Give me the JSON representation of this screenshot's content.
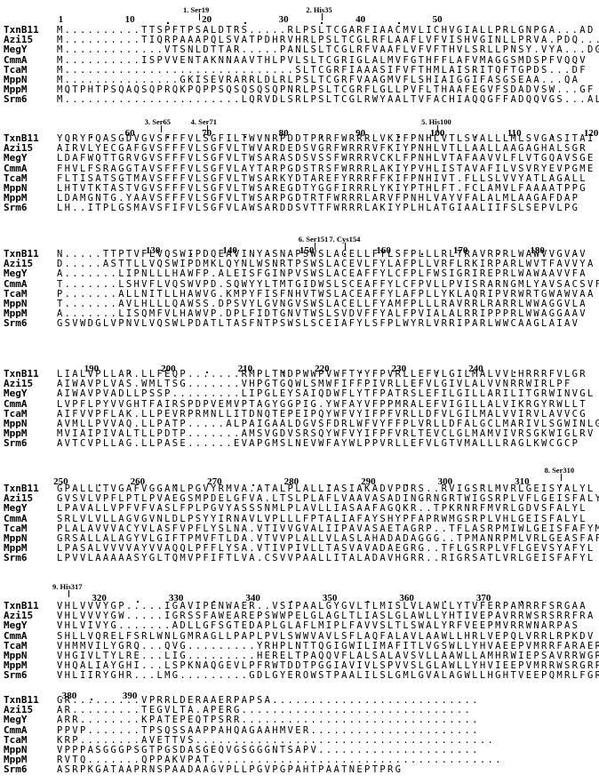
{
  "blocks": [
    {
      "ruler": [
        {
          "label": "1",
          "col": 1
        },
        {
          "label": "10",
          "col": 10
        },
        {
          "label": "20",
          "col": 20
        },
        {
          "label": "30",
          "col": 30
        },
        {
          "label": "40",
          "col": 40
        },
        {
          "label": "50",
          "col": 50
        }
      ],
      "dots": [
        15,
        25,
        35,
        45
      ],
      "annotations": [
        {
          "label": "1. Ser19",
          "col": 19
        },
        {
          "label": "2. His35",
          "col": 35
        }
      ],
      "rows": [
        {
          "name": "TxnB11",
          "seq": "M..........TTSPFTPSALDTRS.....RLPSLTCGARFIAACMVLICHVGIALLPRLGNPGA...AD"
        },
        {
          "name": "Azi15",
          "seq": "M..........TIQRPAAAPQLSVATPDHRVHRLPSLTCGLRFLAAFLVFVISHVGINLLPRVA.PDQ...IF"
        },
        {
          "name": "MegY",
          "seq": "M.............VTSNLDTTAR.....PANLSLTCGLRFVAAFLVFVFTHVLSRLLPNSY.VYA...DG"
        },
        {
          "name": "CmmA",
          "seq": "M..........ISPVVENTAKNNAAVTHLPVLSLTCGRIGLALMVFGTHFFLAFVMAGGSMDSPFVQQV"
        },
        {
          "name": "TcaM",
          "seq": "M..............................SLTCGRFIAAASIFVFTHMLAISRITQFTGPDS...DF"
        },
        {
          "name": "MppN",
          "seq": "M...............GKISEVRARRLDLRLPSLTCGRFVAAGMVFLSHIAIGGIFASGSEAA...QA"
        },
        {
          "name": "MppM",
          "seq": "MQTPHTPSQAQSQPRQKPQPPSQSQSQSQPNRLPSLTCGRFLGLLPVFLTHAAFEGVFSDADVSW...GF"
        },
        {
          "name": "Srm6",
          "seq": "M.......................LQRVDLSRLPSLTCGLRWYAALTVFACHIAQQGFFADQQVGS...AL"
        }
      ]
    },
    {
      "ruler": [
        {
          "label": "60",
          "col": 10
        },
        {
          "label": "70",
          "col": 20
        },
        {
          "label": "80",
          "col": 30
        },
        {
          "label": "90",
          "col": 40
        },
        {
          "label": "100",
          "col": 50
        },
        {
          "label": "110",
          "col": 60
        },
        {
          "label": "120",
          "col": 70
        }
      ],
      "dots": [
        5,
        15,
        25,
        35,
        45,
        55,
        65
      ],
      "annotations": [
        {
          "label": "3. Ser65",
          "col": 14
        },
        {
          "label": "4. Ser71",
          "col": 20
        },
        {
          "label": "5. His100",
          "col": 50
        }
      ],
      "rows": [
        {
          "name": "TxnB11",
          "seq": "YQRYFQASGDVGVSFFFVLSGFILTWVNRPDDTPRRFWRRRLVKIFPNHLVTLSVALLLMLSVGASITAI"
        },
        {
          "name": "Azi15",
          "seq": "AIRVLYECGAFGVSFFFVLSGFVLTWVARDEDSVGRFWRRRVFKIYPNHLVTLLAALLAAGAGHALSGR"
        },
        {
          "name": "MegY",
          "seq": "LDAFWQTTGRVGVSFFFVLSGFVLTWSARASDSVSSFWRRRVCKLFPNHLVTAFAAVVLFLVTGQAVSGE"
        },
        {
          "name": "CmmA",
          "seq": "FHVLFSRAGGTAVSFFFVLSGFVLAYTARPGDSTRSFWRRRLAKIYPVHLISTAVAFILVSVRYEVPGME"
        },
        {
          "name": "TcaM",
          "seq": "FLTISATSGTMAVSFFFVLSGFVLTWSARKYDTAREFYRRRFFKIFPNHIVT.FLLSLVVYATLAGALL"
        },
        {
          "name": "MppN",
          "seq": "LHTVTKTASTVGVSFFFVLSGFVLTWSAREGDTYGGFIRRRLYKIYPTHLFT.FCLAMVLFAAAATPPG"
        },
        {
          "name": "MppM",
          "seq": "LDAMGNTG.YAAVSFFFVLSGFVLTWSARPGDTRTFWRRRLARVFPNHLVAYVFALALMLAAGAFDAP"
        },
        {
          "name": "Srm6",
          "seq": "LH..ITPLGSMAVSFIFVLSGFVLAWSARDDSVTTFWRRRLAKIYPLHLATGIAALIIFSLSEPVLPG"
        }
      ]
    },
    {
      "ruler": [
        {
          "label": "130",
          "col": 13
        },
        {
          "label": "140",
          "col": 23
        },
        {
          "label": "150",
          "col": 33
        },
        {
          "label": "160",
          "col": 43
        },
        {
          "label": "170",
          "col": 53
        },
        {
          "label": "180",
          "col": 63
        }
      ],
      "dots": [
        18,
        28,
        38,
        48,
        58,
        68
      ],
      "annotations": [
        {
          "label": "6. Ser151",
          "col": 34
        },
        {
          "label": "7. Cys154",
          "col": 38
        }
      ],
      "rows": [
        {
          "name": "TxnB11",
          "seq": "N.....TTPTVFLVQSWIPDQEAVINYASNAPSWSLACELLFYLSFPLLLRLTRAVRPRLWAWVVGVAV"
        },
        {
          "name": "Azi15",
          "seq": "D.....ASTTLLVQSWIPDMKLQYNLWSNRTPSWSLACEVLFYLAFPLLVRFLRKIRPARLWVTFAVVYA"
        },
        {
          "name": "MegY",
          "seq": "A.......LIPNLLLHAWFP.ALEISFGINPVSWSLACEAFFYLCFPLFWSIGRIREPRLWAWAAVVFA"
        },
        {
          "name": "CmmA",
          "seq": "T.......LSHVFLVQSWVPD.SQWYYLTMTGIDWSLSCEAFFYLCFPVLLPVISRARNGMLYAVSACSVF"
        },
        {
          "name": "TcaM",
          "seq": "P.......ALLNITLLHAWVG.KMPYFISFNHVTWSLACEAFFYLAFPLLYKLAQRIPVRWRTGWAWVAA"
        },
        {
          "name": "MppN",
          "seq": "T.......AVLHLLLQAWSS.DPSVYLGVNGVSWSLACELLFYAMFPLLLRAVRRLRARRLWWAGGVLA"
        },
        {
          "name": "MppM",
          "seq": "A.......LISQMFVLHAWVP.DPLFIDTGNVTWSLSVDVFFYALFPVIALALRRIPPPRLWWAGGAAV"
        },
        {
          "name": "Srm6",
          "seq": "GSVWDGLVPNVLVQSWLPDATLTASFNTPSWSLSCEIAFYLSFPLWYRLVRRIPARLWWCAAGLAIAV"
        }
      ]
    },
    {
      "ruler": [
        {
          "label": "190",
          "col": 5
        },
        {
          "label": "200",
          "col": 15
        },
        {
          "label": "210",
          "col": 25
        },
        {
          "label": "220",
          "col": 35
        },
        {
          "label": "230",
          "col": 45
        },
        {
          "label": "240",
          "col": 55
        }
      ],
      "dots": [
        10,
        20,
        30,
        40,
        50,
        60
      ],
      "annotations": [],
      "rows": [
        {
          "name": "TxnB11",
          "seq": "LIALVPLLAR.LLFEQP.......RMPLTNDPWWPVWFTYYFPVRLLEFVLGILMALVVLHRRRFVLGR"
        },
        {
          "name": "Azi15",
          "seq": "AIWAVPLVAS.WMLTSG.......VHPGTGQWLSMWFIFFPIVRLLEFVLGIVLALVVNRRWIRLPF"
        },
        {
          "name": "MegY",
          "seq": "AIWAVPVADLLPSSP.........LIPGLEYSAIQDWFLYTFPATRSLEFILGILLARILITGRWINVGL"
        },
        {
          "name": "CmmA",
          "seq": "LVPFLPYVVGHTFAIRSPDPVEMVPTAGYGGPIG.YWFAYVFPPMRALEFVIGILLALVIKRGYRWLLT"
        },
        {
          "name": "TcaM",
          "seq": "AIFVVPFLAK.LLPEVRPRMNLLITDNQTEPEIPQYWFVYIFPFVRLLDFVLGILMALVVIRVLAVVCG"
        },
        {
          "name": "MppN",
          "seq": "AVMLLPVVAQ.LLPATP.....ALPAIGAALDGVSFDRLWFVYFFPLVRLLDFALGCLMARIVLSGWINLGL"
        },
        {
          "name": "MppM",
          "seq": "MVIAIPIVALTLLPDTP.......AMSVGDVSRSQYWFVYIFPFVRLTEVCLGLMAMVIVRSGKWIGLRV"
        },
        {
          "name": "Srm6",
          "seq": "AVTCVPLLAG.LLPASE......EVAPGMSLNEVWFAYWLPPVRLLEFVLGTVMALLLRAGLKWCGCP"
        }
      ]
    },
    {
      "ruler": [
        {
          "label": "250",
          "col": 1
        },
        {
          "label": "260",
          "col": 11
        },
        {
          "label": "270",
          "col": 21
        },
        {
          "label": "280",
          "col": 31
        },
        {
          "label": "290",
          "col": 41
        },
        {
          "label": "300",
          "col": 51
        },
        {
          "label": "310",
          "col": 61
        }
      ],
      "dots": [
        6,
        16,
        26,
        36,
        46,
        56,
        66
      ],
      "annotations": [
        {
          "label": "8. Ser310",
          "col": 66
        }
      ],
      "rows": [
        {
          "name": "TxnB11",
          "seq": "GPALLLTVGAFVGGANLPGVYRMVA.ATALPLALLIASIAKADVPDRS..RVIGSRLMVRLGEISYALYL"
        },
        {
          "name": "Azi15",
          "seq": "GVSVLVPFLPTLPVAEGSMPDELGFVA.LTSLPLAFLVAAVASADINGRNGRTWIGSRPLVFLGEISFALYL"
        },
        {
          "name": "MegY",
          "seq": "LPAVALLVPFVFVASLFPLPGVYASSSNMLPLAVLLIASAAFAGQKR..TPKRNRFMVRLGDVSFALYL"
        },
        {
          "name": "CmmA",
          "seq": "SRLVLVLLAGVGVNLDLPSYYIRNAVLVPLLLFPTALIAFAYSHYPFAPRWMGSRPLVHLGEISFALYL"
        },
        {
          "name": "TcaM",
          "seq": "PLALAVVVACYVLASFVPFLYSLNA.VTIVVGVALIIPAVASAETAGRP..TFLASRPMIWLGEISFAFYM"
        },
        {
          "name": "MppN",
          "seq": "GRSALLALAGYVLGIFTPMVFTLDA.VTVVPLALLVLASLAHADADAGGG..TPMANRPMLVRLGEASFAFYL"
        },
        {
          "name": "MppM",
          "seq": "LPASALVVVVAYVVAQQLPFFLYSA.VTIVPIVLLTASVAVADAEGRG..TFLGSRPLVFLGEVSYAFYL"
        },
        {
          "name": "Srm6",
          "seq": "LPVVLAAAAASYGLTQMVPFIFTLVA.CSVVPAALLITALADAVHGRR..RIGRSATLVRLGEISFAFYL"
        }
      ]
    },
    {
      "ruler": [
        {
          "label": "320",
          "col": 6
        },
        {
          "label": "330",
          "col": 16
        },
        {
          "label": "340",
          "col": 26
        },
        {
          "label": "350",
          "col": 36
        },
        {
          "label": "360",
          "col": 46
        },
        {
          "label": "370",
          "col": 56
        }
      ],
      "dots": [
        11,
        21,
        31,
        41,
        51,
        61
      ],
      "annotations": [
        {
          "label": "9. His317",
          "col": 2
        }
      ],
      "rows": [
        {
          "name": "TxnB11",
          "seq": "VHLVVVYGP.....IGAVIPENWAER..VSIPAALGYGVLTLMISLVLAWLLYTVFERPAMRRFSRGAA"
        },
        {
          "name": "Azi15",
          "seq": "VHLVVVYGW.....IGRSSFAWEAREPSWWPELGLAGLTLIASLGLAWLLYHTIVEPAVRRWSRSRRFRA"
        },
        {
          "name": "MegY",
          "seq": "VHLVIVYG.......ADLLGFSGTEDAPLGLAFLMIPLFAVVSLTLSWALYRFVEEPMVRRWNARPAS"
        },
        {
          "name": "CmmA",
          "seq": "SHLLVQRELFSRLWNLGMRAGLLPAPLPVLSWWVAVLSFLAQFALAVLAAWLLHRLVEPQLVRRLRPKDV"
        },
        {
          "name": "TcaM",
          "seq": "VHMMVILYGRQ...QVG.........YRHPLNTTQGIGWILIMAFITLVGSWLLYHVAEEPVMRRFARAERR"
        },
        {
          "name": "MppN",
          "seq": "VHGIVLTYLRE...LIG.........HERELTPAQQVFLALSALAVSVLLAAWLLAMHRWIEPSAVRRWGRVRP"
        },
        {
          "name": "MppM",
          "seq": "VHQALIAYGHI...LSPKNAQGEVLPFRWTDDTPGGIAVIVLSPVVSLGLAWLLYHVIEEPVMRRWSRGRP"
        },
        {
          "name": "Srm6",
          "seq": "VHLIIRYGHR...LMG.........GDLGYEROWSTPAALILSLGMLGVALAGWLLHGHTVEEPQMRLFGRSRS"
        }
      ]
    },
    {
      "ruler": [
        {
          "label": "380",
          "col": 0
        },
        {
          "label": "390",
          "col": 10
        }
      ],
      "dots": [
        5
      ],
      "annotations": [],
      "rows": [
        {
          "name": "TxnB11",
          "seq": "GR.........VPRRLDERAAERPAPSA..........................."
        },
        {
          "name": "Azi15",
          "seq": "AR.........TEGVLTA.APERG.............................."
        },
        {
          "name": "MegY",
          "seq": "ARR........KPATEPEQTPSRR..............................."
        },
        {
          "name": "CmmA",
          "seq": "PPVP.......TPSQSSAAPPAHQAGAAHMVER......................"
        },
        {
          "name": "TcaM",
          "seq": "KRP........AVETTVS......................................."
        },
        {
          "name": "MppN",
          "seq": "VPPPASGGGPSGTPGSDASGEQVGSGGGNTSAPV....................."
        },
        {
          "name": "MppM",
          "seq": "RVTQ.......QPPAKVPAT......................................"
        },
        {
          "name": "Srm6",
          "seq": "ASRPKGATAAPRNSPAADAAGVPLLPGVPGPAHTPAATNEPTPRG"
        }
      ]
    }
  ]
}
